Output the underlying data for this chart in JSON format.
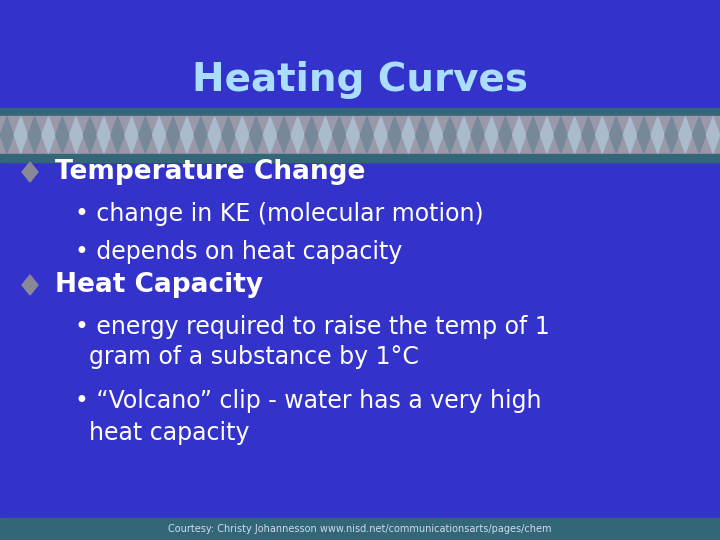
{
  "title": "Heating Curves",
  "title_color": "#aaddff",
  "title_fontsize": 28,
  "bg_color": "#3333cc",
  "teal_bar_color": "#336677",
  "diamond_bg_color": "#9999aa",
  "diamond_color1": "#778899",
  "diamond_color2": "#aabbcc",
  "bullet1_header": "Temperature Change",
  "bullet1_sub1": "change in KE (molecular motion)",
  "bullet1_sub2": "depends on heat capacity",
  "bullet2_header": "Heat Capacity",
  "bullet2_sub1a": "energy required to raise the temp of 1",
  "bullet2_sub1b": "gram of a substance by 1°C",
  "bullet2_sub2a": "“Volcano” clip - water has a very high",
  "bullet2_sub2b": "heat capacity",
  "diamond_bullet_color": "#888899",
  "text_color": "#ffffff",
  "footer_text": "Courtesy: Christy Johannesson www.nisd.net/communicationsarts/pages/chem",
  "footer_bg_color": "#336677",
  "footer_text_color": "#ccddee",
  "font_size_h1": 19,
  "font_size_sub": 17,
  "font_size_footer": 7
}
